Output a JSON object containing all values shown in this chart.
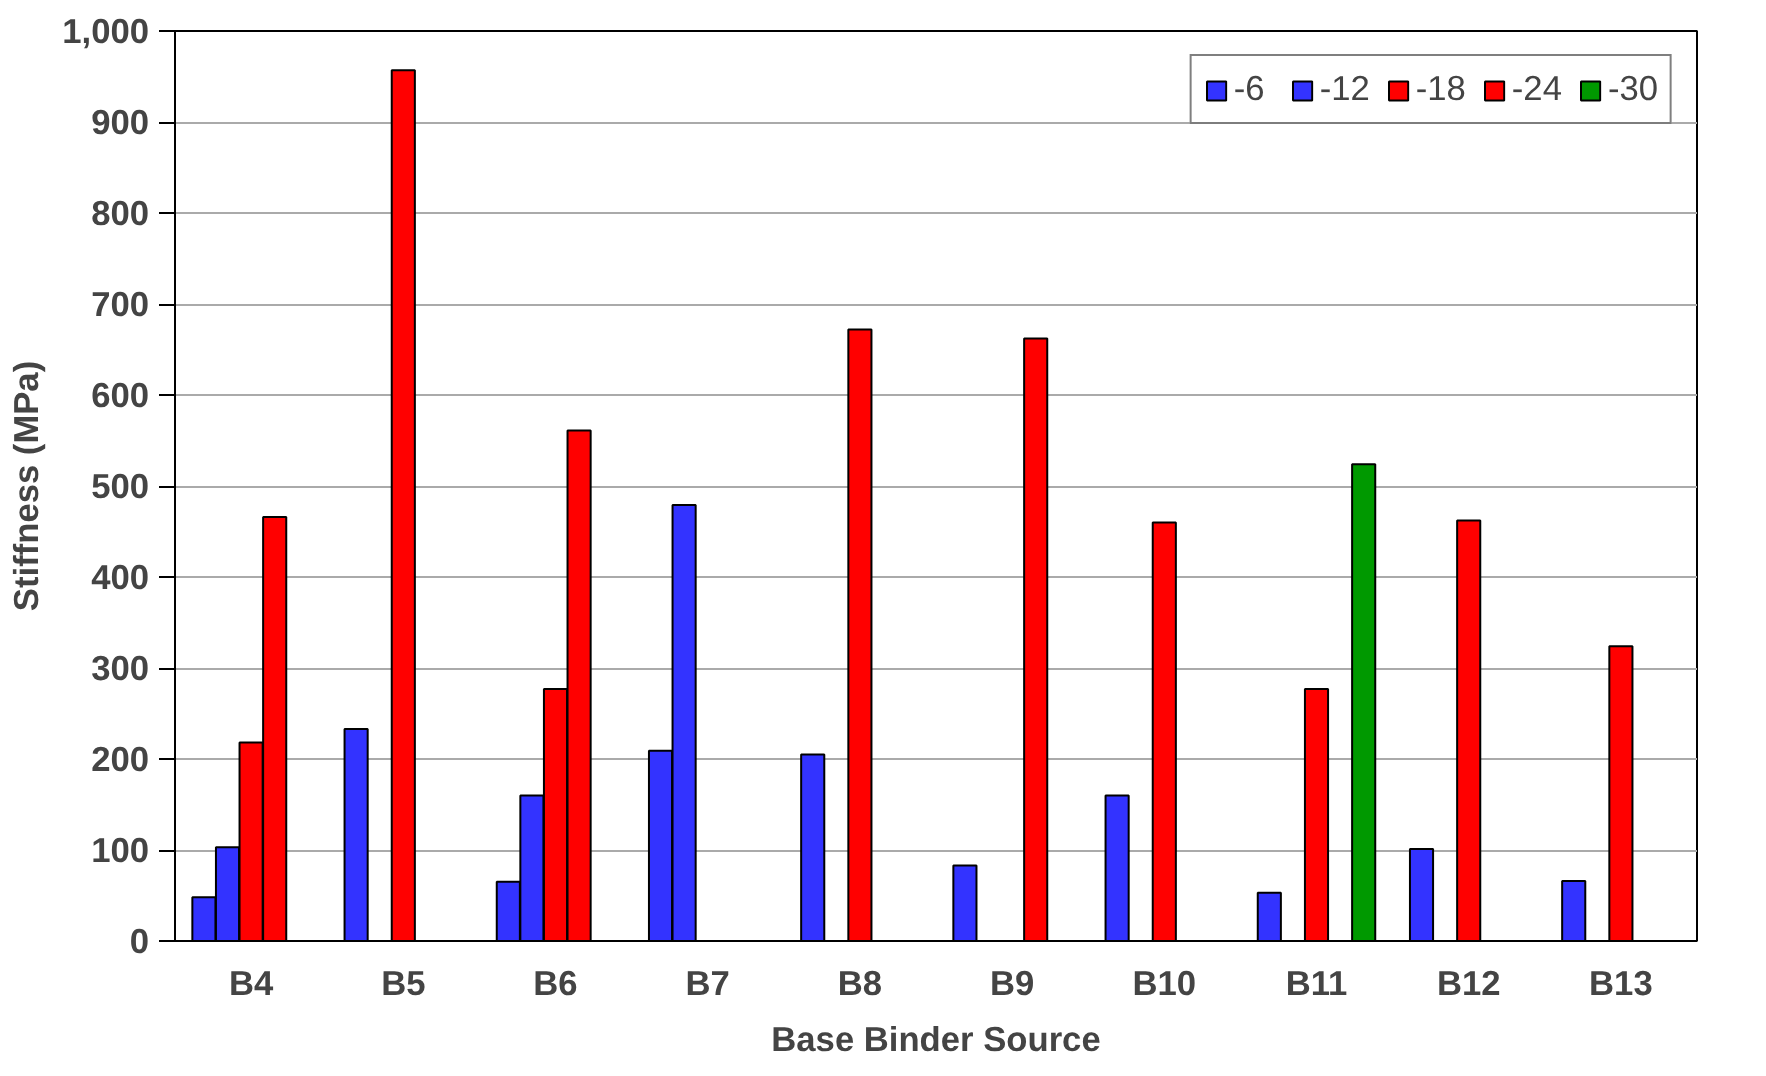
{
  "chart_data": {
    "type": "bar",
    "xlabel": "Base Binder Source",
    "ylabel": "Stiffness (MPa)",
    "categories": [
      "B4",
      "B5",
      "B6",
      "B7",
      "B8",
      "B9",
      "B10",
      "B11",
      "B12",
      "B13"
    ],
    "series": [
      {
        "name": "-6",
        "color": "#3333ff",
        "values": [
          48,
          233,
          65,
          209,
          205,
          83,
          160,
          53,
          101,
          66
        ]
      },
      {
        "name": "-12",
        "color": "#3333ff",
        "values": [
          103,
          null,
          160,
          479,
          null,
          null,
          null,
          null,
          null,
          null
        ]
      },
      {
        "name": "-18",
        "color": "#ff0000",
        "values": [
          218,
          957,
          277,
          null,
          672,
          null,
          460,
          277,
          462,
          324
        ]
      },
      {
        "name": "-24",
        "color": "#ff0000",
        "values": [
          466,
          null,
          561,
          null,
          null,
          662,
          null,
          null,
          null,
          null
        ]
      },
      {
        "name": "-30",
        "color": "#009900",
        "values": [
          null,
          null,
          null,
          null,
          null,
          null,
          null,
          524,
          null,
          null
        ]
      }
    ],
    "ylim": [
      0,
      1000
    ],
    "yticks": [
      0,
      100,
      200,
      300,
      400,
      500,
      600,
      700,
      800,
      900,
      {
        "value": 1000,
        "label": "1,000"
      }
    ],
    "grid": "y",
    "legend": "top right"
  }
}
